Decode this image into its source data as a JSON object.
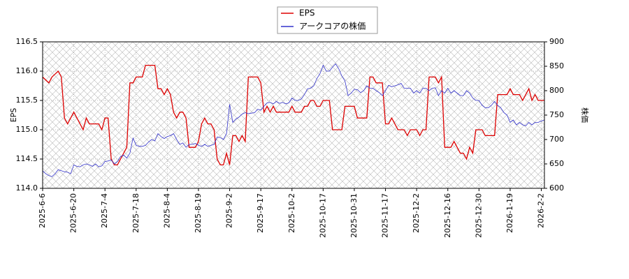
{
  "chart_data": {
    "type": "line",
    "y_label": "EPS",
    "y2_label": "株価",
    "legend": "upper center",
    "grid": true,
    "categories": [
      "2025-6-6",
      null,
      null,
      null,
      null,
      null,
      null,
      null,
      null,
      null,
      "2025-6-20",
      null,
      null,
      null,
      null,
      null,
      null,
      null,
      null,
      null,
      "2025-7-4",
      null,
      null,
      null,
      null,
      null,
      null,
      null,
      null,
      null,
      "2025-7-18",
      null,
      null,
      null,
      null,
      null,
      null,
      null,
      null,
      null,
      "2025-8-4",
      null,
      null,
      null,
      null,
      null,
      null,
      null,
      null,
      null,
      "2025-8-19",
      null,
      null,
      null,
      null,
      null,
      null,
      null,
      null,
      null,
      "2025-9-2",
      null,
      null,
      null,
      null,
      null,
      null,
      null,
      null,
      null,
      "2025-9-17",
      null,
      null,
      null,
      null,
      null,
      null,
      null,
      null,
      null,
      "2025-10-2",
      null,
      null,
      null,
      null,
      null,
      null,
      null,
      null,
      null,
      "2025-10-17",
      null,
      null,
      null,
      null,
      null,
      null,
      null,
      null,
      null,
      "2025-10-31",
      null,
      null,
      null,
      null,
      null,
      null,
      null,
      null,
      null,
      "2025-11-17",
      null,
      null,
      null,
      null,
      null,
      null,
      null,
      null,
      null,
      "2025-12-2",
      null,
      null,
      null,
      null,
      null,
      null,
      null,
      null,
      null,
      "2025-12-16",
      null,
      null,
      null,
      null,
      null,
      null,
      null,
      null,
      null,
      "2025-12-30",
      null,
      null,
      null,
      null,
      null,
      null,
      null,
      null,
      null,
      "2026-1-19",
      null,
      null,
      null,
      null,
      null,
      null,
      null,
      null,
      null,
      "2026-2-2",
      null
    ],
    "series": [
      {
        "name": "EPS",
        "color": "#dd0000",
        "axis": "y",
        "values": [
          115.9,
          115.85,
          115.8,
          115.9,
          115.95,
          116.0,
          115.9,
          115.2,
          115.1,
          115.2,
          115.3,
          115.2,
          115.1,
          115.0,
          115.2,
          115.1,
          115.1,
          115.1,
          115.1,
          115.0,
          115.2,
          115.2,
          114.5,
          114.4,
          114.4,
          114.5,
          114.6,
          114.7,
          115.8,
          115.8,
          115.9,
          115.9,
          115.9,
          116.1,
          116.1,
          116.1,
          116.1,
          115.7,
          115.7,
          115.6,
          115.7,
          115.6,
          115.3,
          115.2,
          115.3,
          115.3,
          115.2,
          114.7,
          114.7,
          114.7,
          114.8,
          115.1,
          115.2,
          115.1,
          115.1,
          115.0,
          114.5,
          114.4,
          114.4,
          114.6,
          114.4,
          114.9,
          114.9,
          114.8,
          114.9,
          114.8,
          115.9,
          115.9,
          115.9,
          115.9,
          115.8,
          115.3,
          115.4,
          115.3,
          115.4,
          115.3,
          115.3,
          115.3,
          115.3,
          115.3,
          115.4,
          115.3,
          115.3,
          115.3,
          115.4,
          115.4,
          115.5,
          115.5,
          115.4,
          115.4,
          115.5,
          115.5,
          115.5,
          115.0,
          115.0,
          115.0,
          115.0,
          115.4,
          115.4,
          115.4,
          115.4,
          115.2,
          115.2,
          115.2,
          115.2,
          115.9,
          115.9,
          115.8,
          115.8,
          115.8,
          115.1,
          115.1,
          115.2,
          115.1,
          115.0,
          115.0,
          115.0,
          114.9,
          115.0,
          115.0,
          115.0,
          114.9,
          115.0,
          115.0,
          115.9,
          115.9,
          115.9,
          115.8,
          115.9,
          114.7,
          114.7,
          114.7,
          114.8,
          114.7,
          114.6,
          114.6,
          114.5,
          114.7,
          114.6,
          115.0,
          115.0,
          115.0,
          114.9,
          114.9,
          114.9,
          114.9,
          115.6,
          115.6,
          115.6,
          115.6,
          115.7,
          115.6,
          115.6,
          115.6,
          115.5,
          115.6,
          115.7,
          115.5,
          115.6,
          115.5,
          115.5,
          115.5
        ]
      },
      {
        "name": "アークコアの株価",
        "color": "#3333cc",
        "axis": "y2",
        "values": [
          636,
          630,
          626,
          624,
          630,
          638,
          636,
          634,
          633,
          630,
          648,
          645,
          644,
          648,
          650,
          648,
          645,
          650,
          644,
          646,
          655,
          656,
          658,
          650,
          655,
          665,
          668,
          662,
          672,
          703,
          688,
          686,
          686,
          688,
          695,
          700,
          697,
          712,
          706,
          702,
          706,
          708,
          712,
          700,
          690,
          693,
          684,
          690,
          690,
          692,
          688,
          686,
          690,
          686,
          688,
          690,
          705,
          704,
          700,
          712,
          772,
          735,
          742,
          746,
          752,
          755,
          753,
          754,
          755,
          762,
          760,
          768,
          775,
          776,
          773,
          778,
          774,
          776,
          773,
          775,
          785,
          780,
          780,
          783,
          792,
          804,
          805,
          810,
          825,
          835,
          852,
          840,
          840,
          848,
          855,
          845,
          830,
          820,
          790,
          795,
          803,
          802,
          796,
          800,
          810,
          805,
          805,
          800,
          796,
          790,
          800,
          811,
          808,
          810,
          812,
          815,
          805,
          805,
          805,
          795,
          800,
          795,
          805,
          805,
          800,
          805,
          806,
          790,
          800,
          795,
          805,
          795,
          800,
          795,
          790,
          790,
          800,
          795,
          785,
          780,
          780,
          770,
          765,
          765,
          770,
          778,
          770,
          765,
          755,
          750,
          735,
          740,
          730,
          735,
          730,
          728,
          735,
          730,
          735,
          735,
          738,
          740
        ]
      }
    ],
    "ylim": [
      114.0,
      116.5
    ],
    "yticks": [
      {
        "value": 114.0,
        "label": "114.0"
      },
      114.5,
      {
        "value": 115.0,
        "label": "115.0"
      },
      115.5,
      {
        "value": 116.0,
        "label": "116.0"
      },
      116.5
    ],
    "y2lim": [
      600,
      900
    ],
    "y2ticks": [
      600,
      650,
      700,
      750,
      800,
      850,
      900
    ]
  }
}
